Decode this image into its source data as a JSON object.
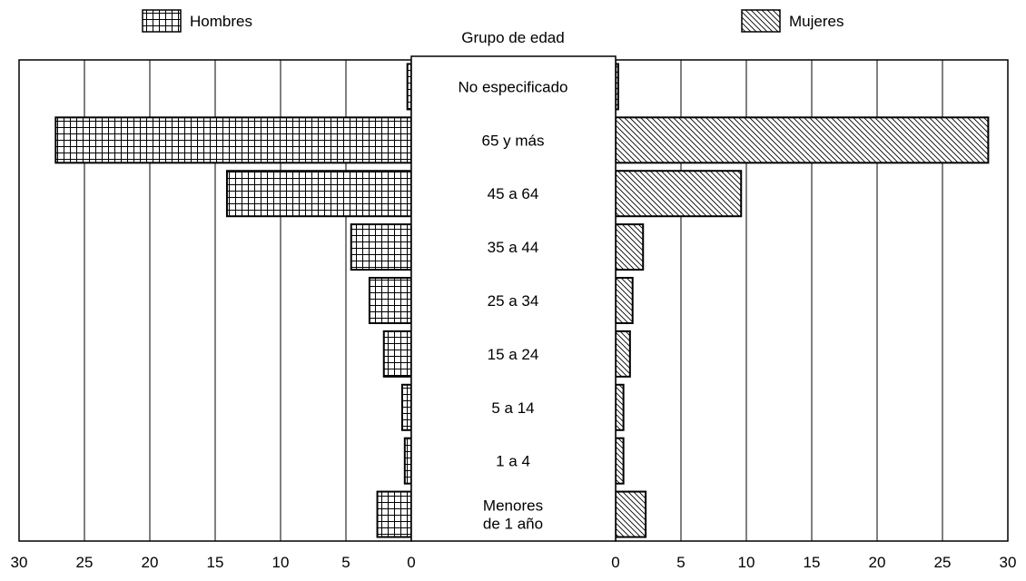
{
  "chart_data": {
    "type": "bar",
    "orientation": "horizontal-pyramid",
    "center_header": "Grupo de  edad",
    "categories": [
      "No especificado",
      "65 y más",
      "45 a 64",
      "35 a 44",
      "25 a 34",
      "15 a 24",
      "5 a 14",
      "1 a 4",
      "Menores de 1 año"
    ],
    "category_lines": [
      [
        "No especificado"
      ],
      [
        "65 y más"
      ],
      [
        "45 a 64"
      ],
      [
        "35 a 44"
      ],
      [
        "25 a 34"
      ],
      [
        "15 a 24"
      ],
      [
        "5 a 14"
      ],
      [
        "1 a 4"
      ],
      [
        "Menores",
        "de 1 año"
      ]
    ],
    "series": [
      {
        "name": "Hombres",
        "side": "left",
        "pattern": "grid",
        "values": [
          0.3,
          27.2,
          14.1,
          4.6,
          3.2,
          2.1,
          0.7,
          0.5,
          2.6
        ]
      },
      {
        "name": "Mujeres",
        "side": "right",
        "pattern": "diagonal-hatch",
        "values": [
          0.2,
          28.5,
          9.6,
          2.1,
          1.3,
          1.1,
          0.6,
          0.6,
          2.3
        ]
      }
    ],
    "xlim": [
      0,
      30
    ],
    "x_ticks": [
      0,
      5,
      10,
      15,
      20,
      25,
      30
    ],
    "grid": true,
    "legend": "top"
  }
}
